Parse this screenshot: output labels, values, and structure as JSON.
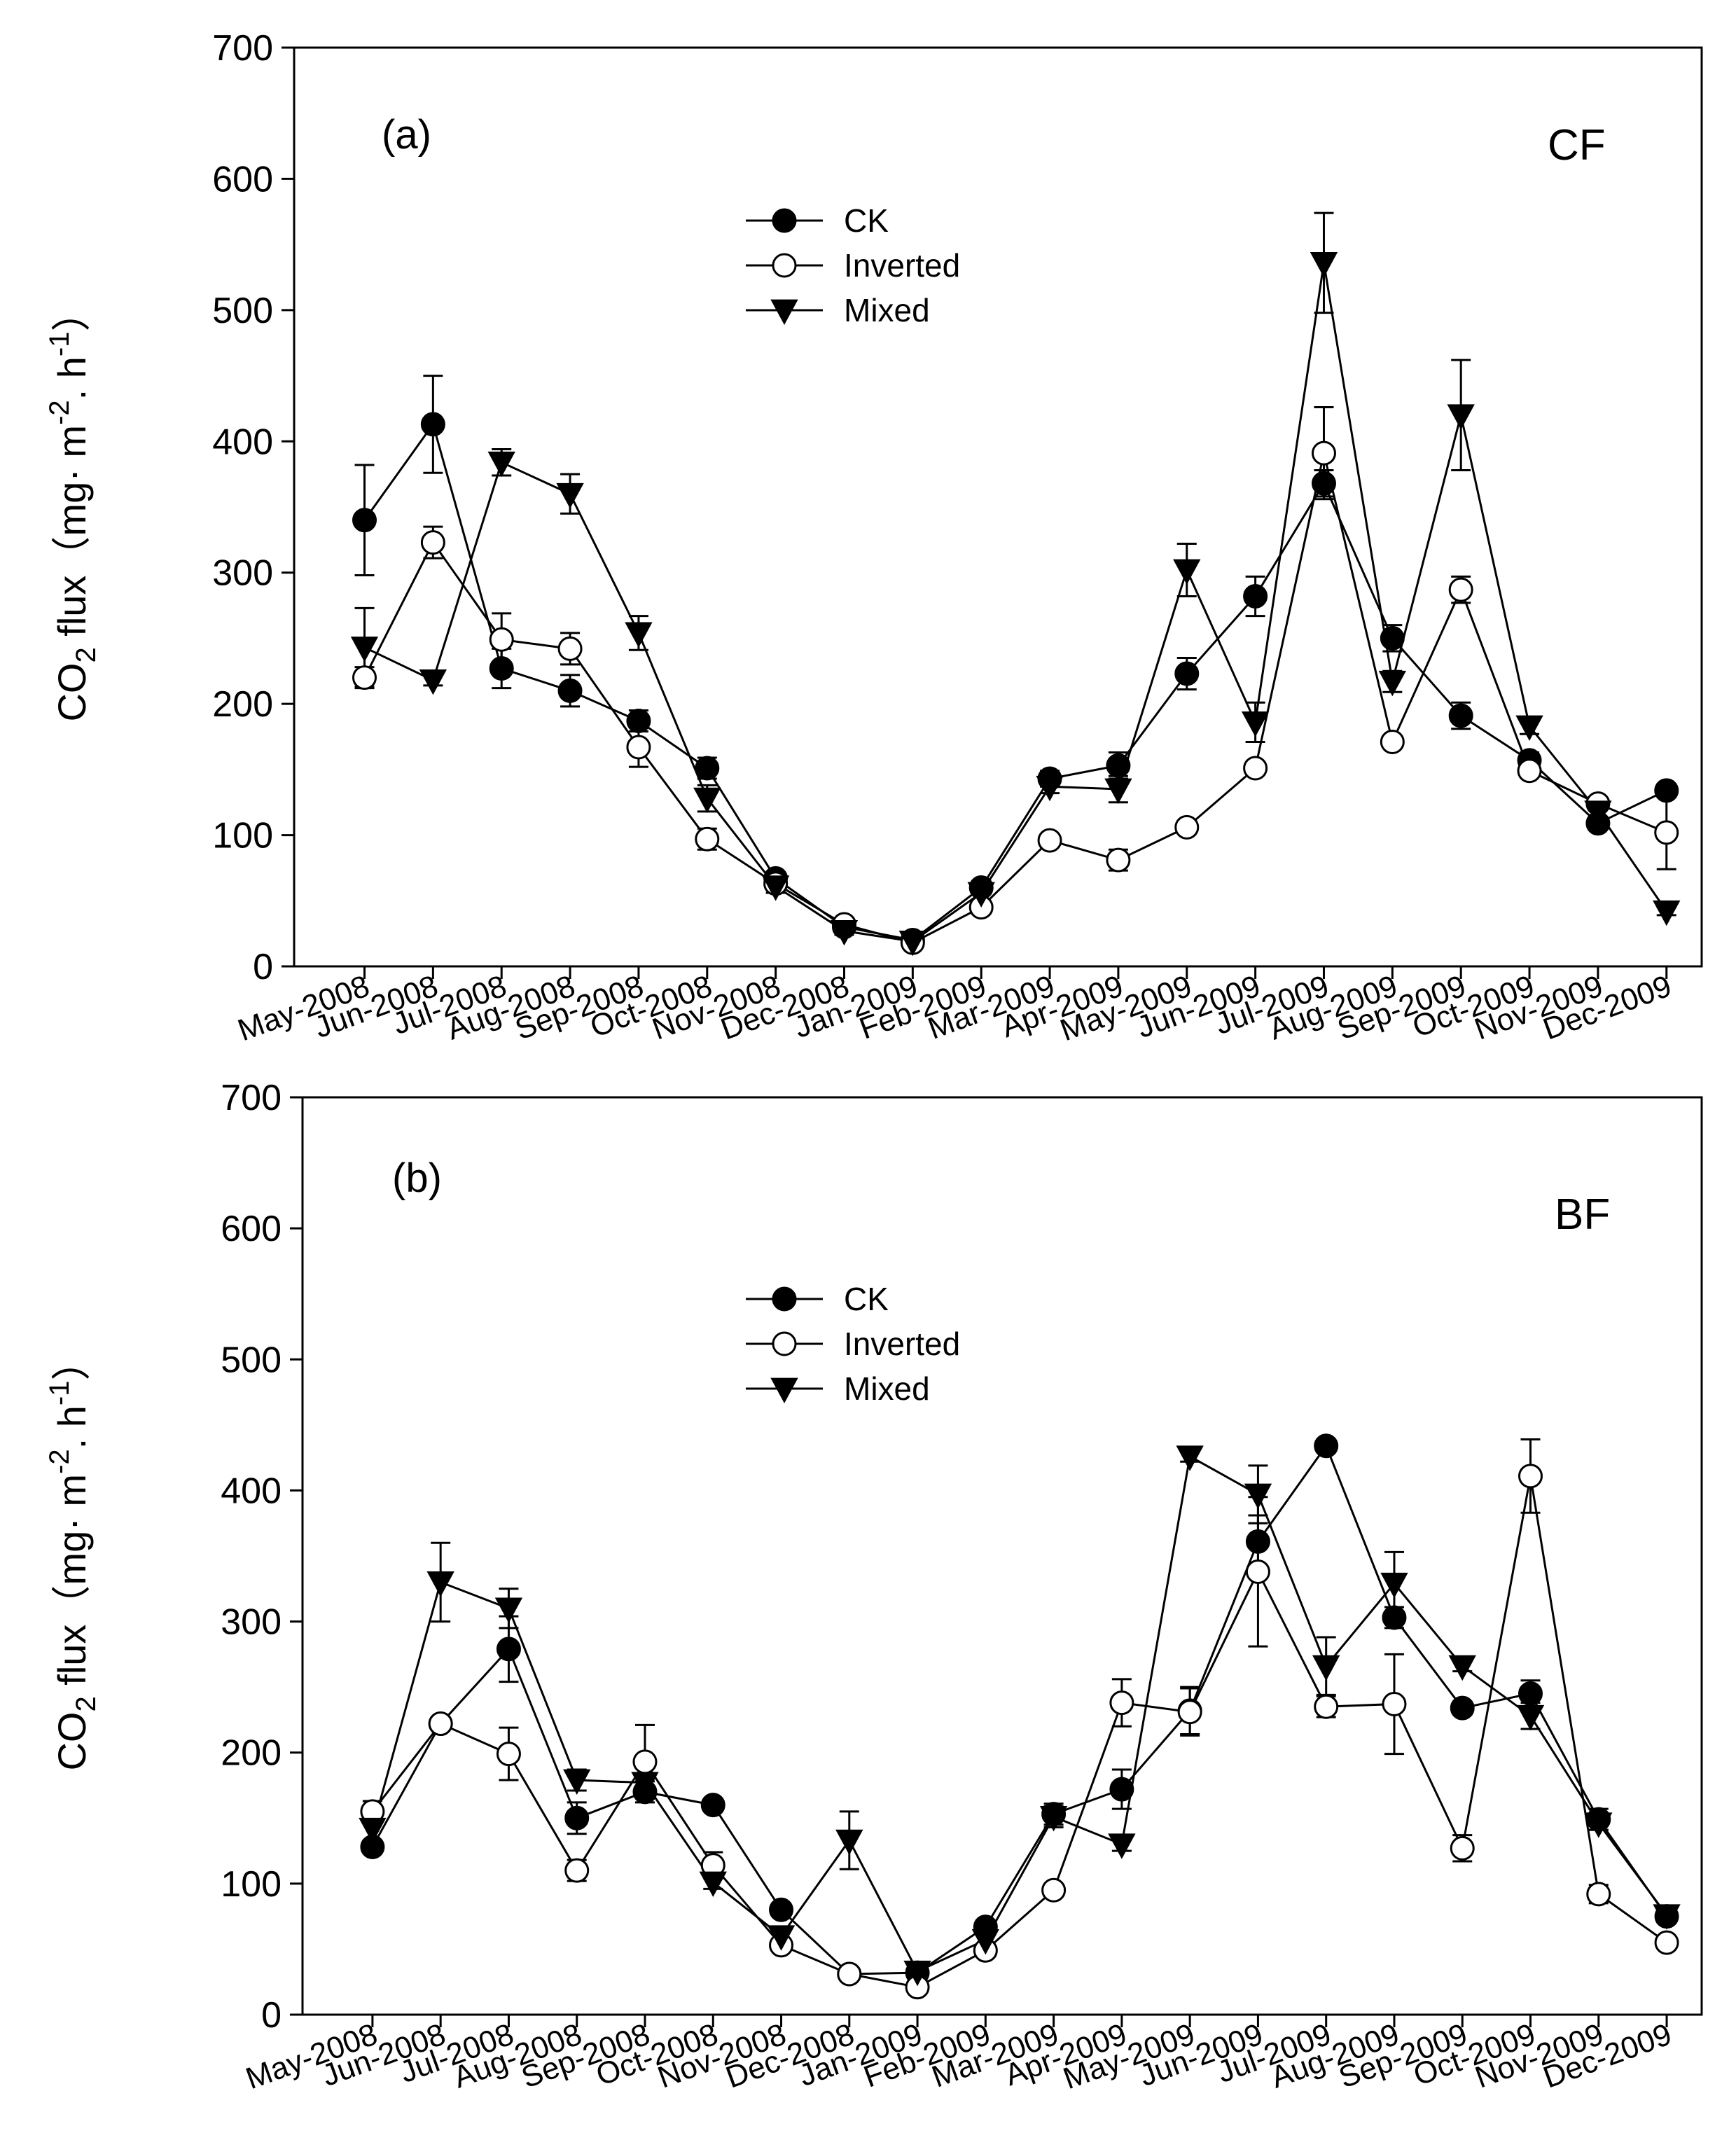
{
  "colors": {
    "line": "#000000",
    "background": "#ffffff"
  },
  "chart_data": [
    {
      "type": "line",
      "panel_label": "(a)",
      "site_label": "CF",
      "ylabel_main": "CO",
      "ylabel_sub": "2",
      "ylabel_rest": " flux（mg· m",
      "ylabel_sup1": "-2",
      "ylabel_mid": ". h",
      "ylabel_sup2": "-1",
      "ylabel_end": "）",
      "ylim": [
        0,
        700
      ],
      "yticks": [
        "0",
        "100",
        "200",
        "300",
        "400",
        "500",
        "600",
        "700"
      ],
      "categories": [
        "May-2008",
        "Jun-2008",
        "Jul-2008",
        "Aug-2008",
        "Sep-2008",
        "Oct-2008",
        "Nov-2008",
        "Dec-2008",
        "Jan-2009",
        "Feb-2009",
        "Mar-2009",
        "Apr-2009",
        "May-2009",
        "Jun-2009",
        "Jul-2009",
        "Aug-2009",
        "Sep-2009",
        "Oct-2009",
        "Nov-2009",
        "Dec-2009"
      ],
      "legend": [
        "CK",
        "Inverted",
        "Mixed"
      ],
      "series": [
        {
          "name": "CK",
          "marker": "filled-circle",
          "values": [
            340,
            413,
            227,
            210,
            187,
            151,
            67,
            30,
            20,
            60,
            143,
            153,
            223,
            282,
            368,
            250,
            191,
            157,
            109,
            134
          ],
          "errors": [
            42,
            37,
            15,
            12,
            8,
            8,
            5,
            3,
            2,
            5,
            6,
            10,
            12,
            15,
            10,
            10,
            10,
            6,
            5,
            5
          ]
        },
        {
          "name": "Inverted",
          "marker": "open-circle",
          "values": [
            220,
            323,
            249,
            242,
            167,
            97,
            63,
            32,
            18,
            45,
            96,
            81,
            106,
            151,
            391,
            171,
            287,
            149,
            124,
            102
          ],
          "errors": [
            8,
            12,
            20,
            12,
            15,
            8,
            4,
            3,
            3,
            5,
            4,
            8,
            5,
            5,
            35,
            4,
            10,
            5,
            5,
            28
          ]
        },
        {
          "name": "Mixed",
          "marker": "filled-triangle-down",
          "values": [
            243,
            218,
            384,
            360,
            254,
            128,
            61,
            27,
            19,
            56,
            137,
            135,
            302,
            186,
            536,
            217,
            420,
            183,
            118,
            42
          ],
          "errors": [
            30,
            4,
            10,
            15,
            13,
            10,
            5,
            3,
            3,
            5,
            5,
            10,
            20,
            15,
            38,
            8,
            42,
            6,
            5,
            3
          ]
        }
      ]
    },
    {
      "type": "line",
      "panel_label": "(b)",
      "site_label": "BF",
      "ylabel_main": "CO",
      "ylabel_sub": "2",
      "ylabel_rest": " flux（mg· m",
      "ylabel_sup1": "-2",
      "ylabel_mid": ". h",
      "ylabel_sup2": "-1",
      "ylabel_end": "）",
      "ylim": [
        0,
        700
      ],
      "yticks": [
        "0",
        "100",
        "200",
        "300",
        "400",
        "500",
        "600",
        "700"
      ],
      "categories": [
        "May-2008",
        "Jun-2008",
        "Jul-2008",
        "Aug-2008",
        "Sep-2008",
        "Oct-2008",
        "Nov-2008",
        "Dec-2008",
        "Jan-2009",
        "Feb-2009",
        "Mar-2009",
        "Apr-2009",
        "May-2009",
        "Jun-2009",
        "Jul-2009",
        "Aug-2009",
        "Sep-2009",
        "Oct-2009",
        "Nov-2009",
        "Dec-2009"
      ],
      "legend": [
        "CK",
        "Inverted",
        "Mixed"
      ],
      "series": [
        {
          "name": "CK",
          "marker": "filled-circle",
          "values": [
            128,
            222,
            279,
            150,
            170,
            160,
            80,
            31,
            32,
            67,
            153,
            172,
            232,
            361,
            434,
            303,
            234,
            245,
            149,
            75
          ],
          "errors": [
            5,
            5,
            25,
            12,
            8,
            5,
            5,
            3,
            3,
            5,
            8,
            15,
            18,
            20,
            5,
            8,
            5,
            10,
            8,
            5
          ]
        },
        {
          "name": "Inverted",
          "marker": "open-circle",
          "values": [
            155,
            222,
            199,
            110,
            193,
            114,
            53,
            31,
            21,
            49,
            95,
            238,
            231,
            338,
            235,
            237,
            127,
            411,
            92,
            55
          ],
          "errors": [
            8,
            5,
            20,
            8,
            28,
            10,
            4,
            3,
            3,
            5,
            4,
            18,
            18,
            57,
            8,
            38,
            10,
            28,
            7,
            4
          ]
        },
        {
          "name": "Mixed",
          "marker": "filled-triangle-down",
          "values": [
            142,
            330,
            310,
            179,
            177,
            101,
            60,
            133,
            33,
            57,
            151,
            130,
            426,
            397,
            266,
            329,
            266,
            228,
            146,
            76
          ],
          "errors": [
            15,
            30,
            15,
            8,
            5,
            5,
            5,
            22,
            3,
            5,
            8,
            5,
            4,
            22,
            22,
            24,
            4,
            10,
            5,
            5
          ]
        }
      ]
    }
  ]
}
